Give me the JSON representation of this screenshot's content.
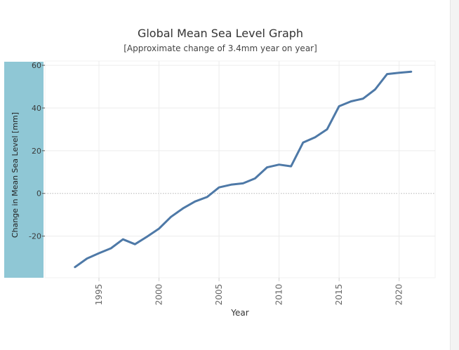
{
  "chart_data": {
    "type": "line",
    "title": "Global Mean Sea Level Graph",
    "subtitle": "[Approximate change of 3.4mm year on year]",
    "xlabel": "Year",
    "ylabel": "Change in Mean Sea Level [mm]",
    "xlim": [
      1990.5,
      2023.0
    ],
    "ylim": [
      -39.5,
      62
    ],
    "x_ticks": [
      1995,
      2000,
      2005,
      2010,
      2015,
      2020
    ],
    "y_ticks": [
      60,
      40,
      20,
      0,
      -20
    ],
    "grid": true,
    "zero_line": true,
    "x": [
      1993,
      1994,
      1995,
      1996,
      1997,
      1998,
      1999,
      2000,
      2001,
      2002,
      2003,
      2004,
      2005,
      2006,
      2007,
      2008,
      2009,
      2010,
      2011,
      2012,
      2013,
      2014,
      2015,
      2016,
      2017,
      2018,
      2019,
      2020,
      2021
    ],
    "series": [
      {
        "values": [
          -34.5,
          -30.5,
          -28,
          -25.7,
          -21.5,
          -23.8,
          -20.3,
          -16.5,
          -11,
          -7,
          -3.8,
          -1.7,
          2.8,
          4.1,
          4.7,
          7,
          12.2,
          13.5,
          12.7,
          23.8,
          26.3,
          30,
          40.8,
          43.1,
          44.4,
          48.7,
          55.9,
          56.5,
          57
        ]
      }
    ],
    "colors": {
      "line": "#4e79a7",
      "ylabel_band": "#8fc7d5",
      "grid": "#ececec",
      "zero_line": "#b5b5b5",
      "tick_text": "#666666"
    }
  }
}
